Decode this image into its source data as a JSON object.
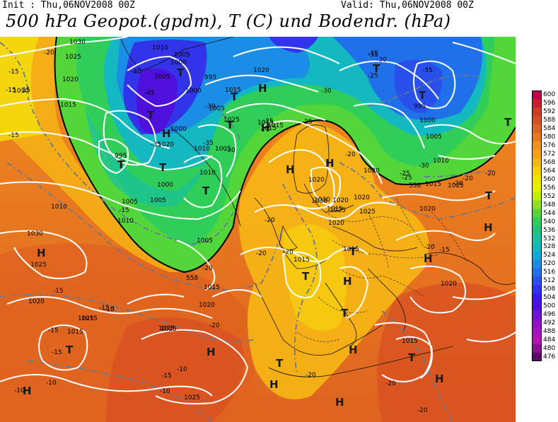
{
  "header": {
    "init": "Init : Thu,06NOV2008 00Z",
    "valid": "Valid: Thu,06NOV2008 00Z",
    "title": "500 hPa Geopot.(gpdm), T (C) und Bodendr. (hPa)"
  },
  "colorbar": {
    "labels": [
      "600",
      "596",
      "592",
      "588",
      "584",
      "580",
      "576",
      "572",
      "568",
      "564",
      "560",
      "556",
      "552",
      "548",
      "544",
      "540",
      "536",
      "532",
      "528",
      "524",
      "520",
      "516",
      "512",
      "508",
      "504",
      "500",
      "496",
      "492",
      "488",
      "484",
      "480",
      "476"
    ],
    "colors": [
      "#c0004a",
      "#c81e2e",
      "#cf3b24",
      "#d74e22",
      "#df6420",
      "#e87820",
      "#f0901c",
      "#f5a018",
      "#f6b714",
      "#f6cc10",
      "#f4e00c",
      "#e6ee08",
      "#c2ea08",
      "#8fe020",
      "#52d63a",
      "#30ce58",
      "#22c47c",
      "#18c0a0",
      "#14b8c0",
      "#10a8d8",
      "#1a8ee6",
      "#2070ea",
      "#2a50ec",
      "#3234ea",
      "#3a18e6",
      "#5010dc",
      "#7010d4",
      "#8e10cc",
      "#a810c4",
      "#b810b8",
      "#8a1090",
      "#5a0a6a"
    ]
  },
  "map": {
    "pressure_labels": [
      "1030",
      "1025",
      "1020",
      "1010",
      "1015",
      "1010",
      "1005",
      "1000",
      "1000",
      "1005",
      "1020",
      "1005",
      "995",
      "1000",
      "1025",
      "1015",
      "1005",
      "995",
      "1020",
      "1010",
      "1015",
      "995",
      "1000",
      "1005",
      "1010",
      "1015",
      "1020",
      "1025",
      "1020",
      "1015",
      "1005",
      "1015",
      "1020",
      "1025",
      "1030",
      "1025",
      "1020",
      "1015",
      "1015",
      "1010",
      "1005",
      "1010",
      "1030",
      "1020",
      "1015",
      "1015",
      "1025",
      "1020",
      "1020",
      "1015",
      "1025",
      "1020",
      "1025",
      "1025",
      "1015",
      "1015",
      "1010",
      "1005",
      "1000",
      "1030",
      "1025",
      "1020"
    ],
    "temp_labels": [
      "-20",
      "-15",
      "-15",
      "-15",
      "-40",
      "-45",
      "-35",
      "-30",
      "-35",
      "-30",
      "-35",
      "-25",
      "-25",
      "-30",
      "-30",
      "-25",
      "-20",
      "-20",
      "-20",
      "-20",
      "-20",
      "-20",
      "-15",
      "-15",
      "-15",
      "-15",
      "-10",
      "-10",
      "-10",
      "-10",
      "-15",
      "-15",
      "-25",
      "-20",
      "-20",
      "-35",
      "-35",
      "-30",
      "-25",
      "-20",
      "-20",
      "-20",
      "-15",
      "-15",
      "-10",
      "-15",
      "-20",
      "-20"
    ],
    "H_label": "H",
    "T_label": "T",
    "contour_label_558": "558"
  }
}
